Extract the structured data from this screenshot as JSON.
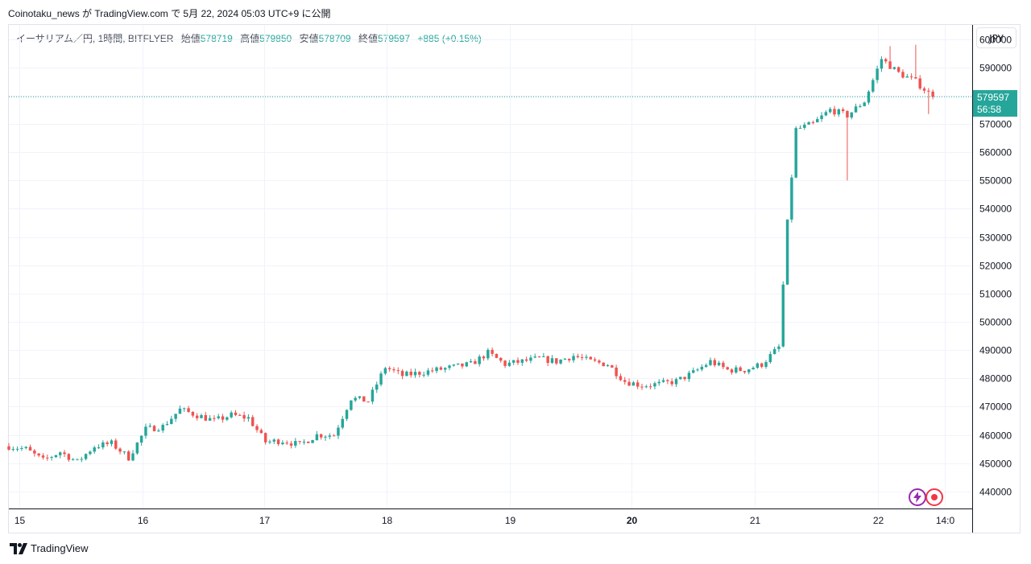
{
  "caption": "Coinotaku_news が TradingView.com で 5月 22, 2024 05:03 UTC+9 に公開",
  "legend": {
    "symbol": "イーサリアム／円, 1時間, BITFLYER",
    "open_label": "始値",
    "open": "578719",
    "high_label": "高値",
    "high": "579850",
    "low_label": "安値",
    "low": "578709",
    "close_label": "終値",
    "close": "579597",
    "change": "+885 (+0.15%)"
  },
  "currency": "JPY",
  "price_label": {
    "price": "579597",
    "countdown": "56:58"
  },
  "brand": "TradingView",
  "icons": {
    "bolt": "lightning-icon",
    "record": "record-icon"
  },
  "colors": {
    "up": "#26a69a",
    "down": "#ef5350",
    "grid": "#f0f3fa"
  },
  "chart_data": {
    "type": "candlestick",
    "title": "",
    "xlabel": "",
    "ylabel": "",
    "ylim": [
      434000,
      605000
    ],
    "y_ticks": [
      440000,
      450000,
      460000,
      470000,
      480000,
      490000,
      500000,
      510000,
      520000,
      530000,
      540000,
      550000,
      560000,
      570000,
      580000,
      590000,
      600000
    ],
    "x_ticks": [
      {
        "label": "15",
        "t": 0.6
      },
      {
        "label": "16",
        "t": 7.8
      },
      {
        "label": "17",
        "t": 14.9
      },
      {
        "label": "18",
        "t": 22.1
      },
      {
        "label": "19",
        "t": 29.3
      },
      {
        "label": "20",
        "t": 36.4,
        "bold": true
      },
      {
        "label": "21",
        "t": 43.6
      },
      {
        "label": "22",
        "t": 50.8
      },
      {
        "label": "14:0",
        "t": 54.7
      }
    ],
    "t_range": [
      0,
      56.3
    ],
    "current_price": 579597,
    "waypoints": [
      [
        0,
        456000
      ],
      [
        1,
        455000
      ],
      [
        2,
        451000
      ],
      [
        3,
        454000
      ],
      [
        4,
        450500
      ],
      [
        5,
        456000
      ],
      [
        6,
        457000
      ],
      [
        7,
        452000
      ],
      [
        8,
        462000
      ],
      [
        9,
        463000
      ],
      [
        10,
        469000
      ],
      [
        11,
        467000
      ],
      [
        12,
        465000
      ],
      [
        13,
        467000
      ],
      [
        14,
        466000
      ],
      [
        15,
        457500
      ],
      [
        16,
        458000
      ],
      [
        17,
        456500
      ],
      [
        18,
        460000
      ],
      [
        19,
        460000
      ],
      [
        20,
        473000
      ],
      [
        21,
        472000
      ],
      [
        22,
        484000
      ],
      [
        23,
        481000
      ],
      [
        24,
        482000
      ],
      [
        25,
        483000
      ],
      [
        26,
        484000
      ],
      [
        27,
        485000
      ],
      [
        28,
        489000
      ],
      [
        29,
        485000
      ],
      [
        30,
        486000
      ],
      [
        31,
        487000
      ],
      [
        32,
        486000
      ],
      [
        33,
        488000
      ],
      [
        34,
        486000
      ],
      [
        35,
        485000
      ],
      [
        36,
        479000
      ],
      [
        37,
        477500
      ],
      [
        38,
        478000
      ],
      [
        39,
        479000
      ],
      [
        40,
        482000
      ],
      [
        41,
        486000
      ],
      [
        42,
        483000
      ],
      [
        43,
        483000
      ],
      [
        44,
        485000
      ],
      [
        45,
        491000
      ],
      [
        45.5,
        535000
      ],
      [
        46,
        568000
      ],
      [
        47,
        570000
      ],
      [
        48,
        575000
      ],
      [
        49,
        573000
      ],
      [
        50,
        578000
      ],
      [
        51,
        593000
      ],
      [
        52,
        588000
      ],
      [
        53,
        585000
      ],
      [
        54,
        579597
      ]
    ],
    "spikes": [
      {
        "t": 49.0,
        "low": 550000
      },
      {
        "t": 51.5,
        "high": 597500
      },
      {
        "t": 53.0,
        "high": 598000
      },
      {
        "t": 53.8,
        "low": 573500
      }
    ]
  }
}
